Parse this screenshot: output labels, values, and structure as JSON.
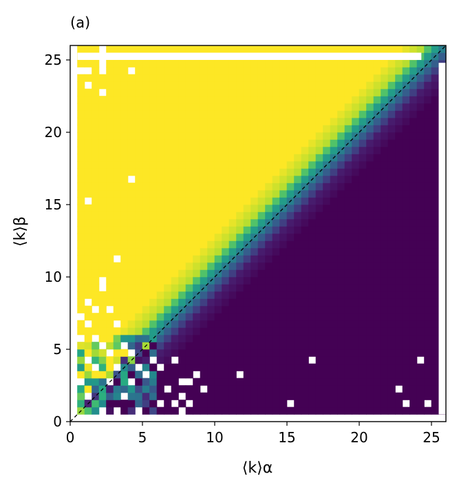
{
  "chart_data": {
    "type": "heatmap",
    "panel_label": "(a)",
    "xlabel": "⟨k⟩α",
    "ylabel": "⟨k⟩β",
    "xlim": [
      0,
      26
    ],
    "ylim": [
      0,
      26
    ],
    "xticks": [
      0,
      5,
      10,
      15,
      20,
      25
    ],
    "yticks": [
      0,
      5,
      10,
      15,
      20,
      25
    ],
    "grid": false,
    "colormap": "viridis",
    "cell_size": 0.5,
    "colors": {
      "high": "#fde725",
      "low": "#440154",
      "diagonal_line": "#000000",
      "frame": "#000000"
    },
    "diagonal_reference": {
      "from": [
        0,
        0
      ],
      "to": [
        26,
        26
      ],
      "style": "dashed"
    },
    "description": "Matrix of values on a 0.5 grid over kalpha 0.5-25.5 and kbeta 0.5-25.5; values near 1 (yellow) above the diagonal, near 0 (purple) below, with a narrow teal transition band along the diagonal.",
    "transition_profile": [
      {
        "kalpha_minus_kbeta": -3,
        "value": 1.0
      },
      {
        "kalpha_minus_kbeta": -1.5,
        "value": 0.9
      },
      {
        "kalpha_minus_kbeta": -0.5,
        "value": 0.55
      },
      {
        "kalpha_minus_kbeta": 0.5,
        "value": 0.3
      },
      {
        "kalpha_minus_kbeta": 1.5,
        "value": 0.1
      },
      {
        "kalpha_minus_kbeta": 3,
        "value": 0.0
      }
    ],
    "missing_cells_white": [
      [
        2.25,
        25.75
      ],
      [
        2.25,
        25.25
      ],
      [
        2.25,
        24.75
      ],
      [
        2.25,
        24.25
      ],
      [
        1.75,
        25.25
      ],
      [
        2.75,
        25.25
      ],
      [
        0.75,
        24.25
      ],
      [
        1.25,
        24.25
      ],
      [
        4.25,
        24.25
      ],
      [
        1.25,
        23.25
      ],
      [
        2.25,
        22.75
      ],
      [
        4.25,
        16.75
      ],
      [
        1.25,
        15.25
      ],
      [
        3.25,
        11.25
      ],
      [
        2.25,
        9.25
      ],
      [
        2.25,
        9.75
      ],
      [
        1.25,
        8.25
      ],
      [
        1.75,
        7.75
      ],
      [
        2.75,
        7.75
      ],
      [
        0.75,
        7.25
      ],
      [
        1.25,
        6.75
      ],
      [
        3.25,
        6.75
      ],
      [
        0.75,
        5.75
      ],
      [
        1.75,
        5.75
      ],
      [
        2.25,
        5.25
      ],
      [
        3.75,
        5.25
      ],
      [
        4.25,
        4.75
      ],
      [
        2.75,
        4.75
      ],
      [
        1.25,
        4.25
      ],
      [
        1.75,
        3.75
      ],
      [
        3.25,
        3.75
      ],
      [
        4.75,
        3.75
      ],
      [
        5.25,
        3.25
      ],
      [
        0.75,
        2.75
      ],
      [
        2.75,
        2.75
      ],
      [
        4.25,
        2.75
      ],
      [
        1.25,
        1.75
      ],
      [
        3.75,
        1.75
      ],
      [
        2.25,
        0.75
      ],
      [
        3.25,
        0.75
      ],
      [
        4.75,
        0.75
      ],
      [
        5.75,
        4.25
      ],
      [
        6.25,
        3.75
      ],
      [
        7.25,
        4.25
      ],
      [
        6.75,
        2.25
      ],
      [
        7.75,
        2.75
      ],
      [
        6.25,
        1.25
      ],
      [
        7.25,
        1.25
      ],
      [
        8.25,
        1.25
      ],
      [
        7.75,
        1.75
      ],
      [
        7.75,
        0.75
      ],
      [
        8.25,
        2.75
      ],
      [
        8.75,
        3.25
      ],
      [
        9.25,
        2.25
      ],
      [
        11.75,
        3.25
      ],
      [
        15.25,
        1.25
      ],
      [
        16.75,
        4.25
      ],
      [
        24.25,
        4.25
      ],
      [
        22.75,
        2.25
      ],
      [
        23.25,
        1.25
      ],
      [
        24.75,
        1.25
      ]
    ]
  }
}
